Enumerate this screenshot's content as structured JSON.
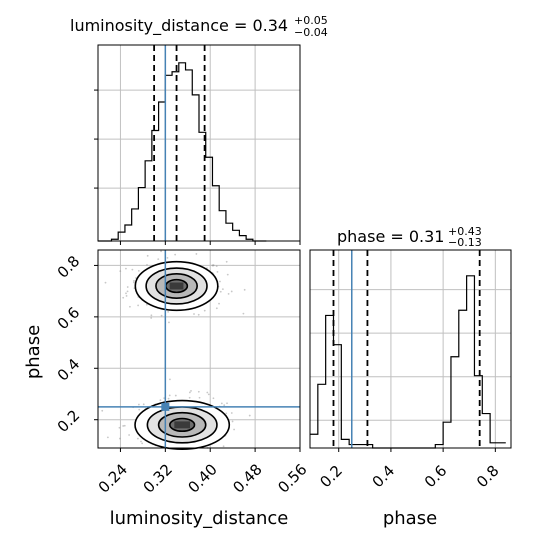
{
  "chart_data": {
    "type": "corner",
    "parameters": [
      "luminosity_distance",
      "phase"
    ],
    "truths": {
      "luminosity_distance": 0.32,
      "phase": 0.25
    },
    "colors": {
      "truth": "#4682b4",
      "hist": "#000000",
      "grid": "#c0c0c0"
    },
    "panels": [
      {
        "id": "luminosity_distance_hist",
        "type": "histogram",
        "title": {
          "text": "luminosity_distance = 0.34",
          "plus": "+0.05",
          "minus": "−0.04"
        },
        "x": [
          0.2,
          0.212,
          0.224,
          0.236,
          0.248,
          0.26,
          0.272,
          0.284,
          0.296,
          0.308,
          0.32,
          0.332,
          0.344,
          0.356,
          0.368,
          0.38,
          0.392,
          0.404,
          0.416,
          0.428,
          0.44,
          0.452,
          0.464,
          0.476,
          0.488,
          0.5
        ],
        "values": [
          0.0,
          0.0,
          0.01,
          0.05,
          0.09,
          0.18,
          0.3,
          0.45,
          0.62,
          0.78,
          0.93,
          0.95,
          1.0,
          0.96,
          0.82,
          0.61,
          0.47,
          0.31,
          0.17,
          0.1,
          0.06,
          0.03,
          0.01,
          0.0,
          0.0
        ],
        "quantiles": [
          0.3,
          0.34,
          0.39
        ],
        "xlim": [
          0.2,
          0.56
        ],
        "ylim": [
          0,
          1.1
        ]
      },
      {
        "id": "phase_vs_luminosity_distance",
        "type": "density",
        "xlabel": "luminosity_distance",
        "ylabel": "phase",
        "xticks": [
          "0.24",
          "0.32",
          "0.40",
          "0.48",
          "0.56"
        ],
        "yticks": [
          "0.2",
          "0.4",
          "0.6",
          "0.8"
        ],
        "xlim": [
          0.2,
          0.56
        ],
        "ylim": [
          0.09,
          0.86
        ],
        "modes": [
          {
            "x": 0.34,
            "y": 0.72,
            "sx": 0.035,
            "sy": 0.045
          },
          {
            "x": 0.35,
            "y": 0.18,
            "sx": 0.04,
            "sy": 0.045
          }
        ]
      },
      {
        "id": "phase_hist",
        "type": "histogram",
        "title": {
          "text": "phase = 0.31",
          "plus": "+0.43",
          "minus": "−0.13"
        },
        "xlabel": "phase",
        "xticks": [
          "0.2",
          "0.4",
          "0.6",
          "0.8"
        ],
        "x": [
          0.09,
          0.12,
          0.15,
          0.18,
          0.21,
          0.24,
          0.27,
          0.3,
          0.33,
          0.36,
          0.39,
          0.42,
          0.45,
          0.48,
          0.51,
          0.54,
          0.57,
          0.6,
          0.63,
          0.66,
          0.69,
          0.72,
          0.75,
          0.78,
          0.81,
          0.84
        ],
        "values": [
          0.08,
          0.37,
          0.77,
          0.6,
          0.05,
          0.02,
          0.02,
          0.02,
          0.0,
          0.0,
          0.0,
          0.0,
          0.0,
          0.0,
          0.0,
          0.0,
          0.02,
          0.15,
          0.53,
          0.8,
          1.0,
          0.42,
          0.2,
          0.03,
          0.03
        ],
        "quantiles": [
          0.18,
          0.31,
          0.74
        ],
        "xlim": [
          0.09,
          0.86
        ],
        "ylim": [
          0,
          1.15
        ]
      }
    ]
  }
}
